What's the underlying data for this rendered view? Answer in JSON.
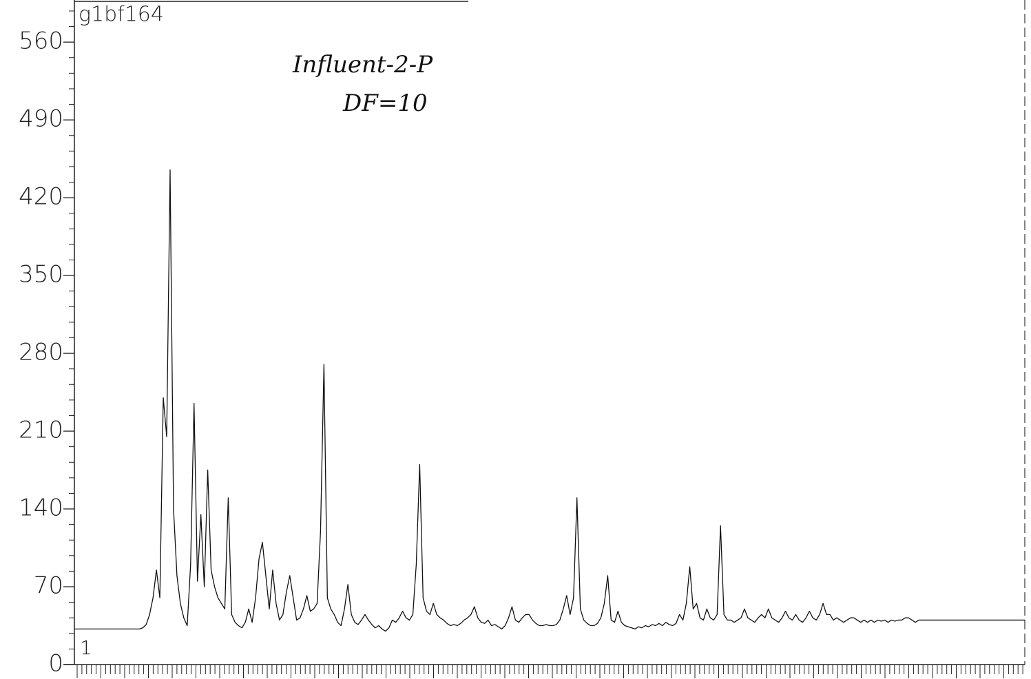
{
  "chart_data": {
    "type": "line",
    "title": "g1bf164",
    "annotations": [
      "Influent-2-P",
      "DF=10"
    ],
    "marker_label": "1",
    "color": "#111111",
    "ylim": [
      0,
      600
    ],
    "yticks": [
      0,
      70,
      140,
      210,
      280,
      350,
      420,
      490,
      560
    ],
    "values": [
      32,
      32,
      32,
      32,
      32,
      32,
      32,
      32,
      32,
      32,
      32,
      32,
      32,
      32,
      32,
      32,
      32,
      32,
      32,
      32,
      33,
      36,
      45,
      60,
      85,
      60,
      240,
      205,
      445,
      140,
      80,
      55,
      42,
      35,
      90,
      235,
      75,
      135,
      70,
      175,
      85,
      70,
      60,
      55,
      50,
      150,
      45,
      38,
      35,
      33,
      38,
      50,
      38,
      60,
      95,
      110,
      80,
      50,
      85,
      55,
      40,
      45,
      65,
      80,
      60,
      40,
      42,
      50,
      62,
      48,
      50,
      55,
      120,
      270,
      60,
      50,
      45,
      38,
      35,
      50,
      72,
      45,
      38,
      36,
      40,
      45,
      40,
      36,
      33,
      35,
      32,
      30,
      33,
      40,
      38,
      42,
      48,
      42,
      40,
      45,
      90,
      180,
      60,
      48,
      45,
      55,
      45,
      42,
      40,
      37,
      35,
      36,
      35,
      37,
      40,
      42,
      45,
      52,
      42,
      38,
      37,
      40,
      35,
      36,
      34,
      32,
      35,
      42,
      52,
      40,
      38,
      42,
      45,
      45,
      40,
      37,
      35,
      35,
      36,
      35,
      35,
      36,
      40,
      50,
      62,
      45,
      60,
      150,
      50,
      40,
      37,
      35,
      35,
      37,
      42,
      55,
      80,
      40,
      38,
      48,
      38,
      35,
      34,
      33,
      32,
      34,
      33,
      35,
      34,
      36,
      35,
      37,
      35,
      38,
      36,
      35,
      37,
      45,
      40,
      55,
      88,
      50,
      55,
      42,
      40,
      50,
      42,
      40,
      45,
      125,
      45,
      40,
      40,
      38,
      40,
      42,
      50,
      42,
      40,
      38,
      42,
      45,
      42,
      50,
      42,
      40,
      38,
      42,
      48,
      42,
      40,
      45,
      40,
      38,
      42,
      48,
      42,
      40,
      45,
      55,
      45,
      45,
      40,
      42,
      40,
      38,
      40,
      42,
      42,
      40,
      38,
      40,
      38,
      40,
      38,
      40,
      39,
      40,
      38,
      40,
      39,
      40,
      40,
      42,
      42,
      40,
      38,
      40,
      40,
      40,
      40,
      40,
      40,
      40,
      40,
      40,
      40,
      40,
      40,
      40,
      40,
      40,
      40,
      40,
      40,
      40,
      40,
      40,
      40,
      40,
      40,
      40,
      40,
      40,
      40,
      40,
      40,
      40,
      40
    ]
  }
}
